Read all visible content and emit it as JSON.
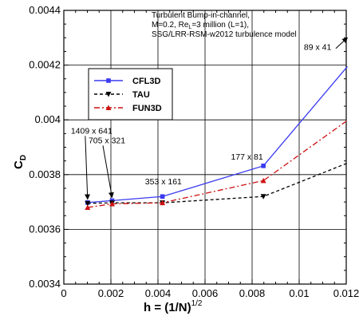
{
  "chart_data": {
    "type": "line",
    "title_lines": [
      "Turbulent Bump-in-channel,",
      "M=0.2, Re",
      "=3 million (L=1),",
      "SSG/LRR-RSM-w2012 turbulence model"
    ],
    "title_sub": "L",
    "xlabel": "h = (1/N)",
    "xlabel_sup": "1/2",
    "ylabel": "C",
    "ylabel_sub": "D",
    "xlim": [
      0,
      0.012
    ],
    "ylim": [
      0.0034,
      0.0044
    ],
    "xticks": [
      "0",
      "0.002",
      "0.004",
      "0.006",
      "0.008",
      "0.01",
      "0.012"
    ],
    "yticks": [
      "0.0034",
      "0.0036",
      "0.0038",
      "0.004",
      "0.0042",
      "0.0044"
    ],
    "grid": true,
    "legend_position": "upper-left",
    "series": [
      {
        "name": "CFL3D",
        "color": "#3a3af0",
        "dash": "solid",
        "marker": "square",
        "x": [
          0.00101,
          0.00205,
          0.00419,
          0.00848,
          0.01205
        ],
        "y": [
          0.003698,
          0.003705,
          0.00372,
          0.003832,
          0.004195
        ]
      },
      {
        "name": "TAU",
        "color": "#000000",
        "dash": "dashed",
        "marker": "triangle-down",
        "x": [
          0.00101,
          0.00205,
          0.00419,
          0.00848,
          0.01205
        ],
        "y": [
          0.003695,
          0.003697,
          0.003697,
          0.00372,
          0.003842
        ]
      },
      {
        "name": "FUN3D",
        "color": "#cc1111",
        "dash": "dashdot",
        "marker": "triangle-up",
        "x": [
          0.00101,
          0.00205,
          0.00419,
          0.00848,
          0.01205
        ],
        "y": [
          0.00368,
          0.003693,
          0.003697,
          0.003778,
          0.003998
        ]
      }
    ],
    "annotations": [
      {
        "text": "1409 x 641",
        "x": 0.00101,
        "y": 0.003698,
        "label_x": 0.0003,
        "label_y": 0.00395
      },
      {
        "text": "705 x 321",
        "x": 0.00205,
        "y": 0.003705,
        "label_x": 0.00105,
        "label_y": 0.003915
      },
      {
        "text": "353 x 161",
        "x": 0.00419,
        "y": 0.00372,
        "label_x": 0.00345,
        "label_y": 0.003765
      },
      {
        "text": "177 x 81",
        "x": 0.00848,
        "y": 0.003832,
        "label_x": 0.0071,
        "label_y": 0.003855
      },
      {
        "text": "89 x 41",
        "x": 0.01205,
        "y": 0.0043,
        "label_x": 0.0102,
        "label_y": 0.004255
      }
    ]
  }
}
